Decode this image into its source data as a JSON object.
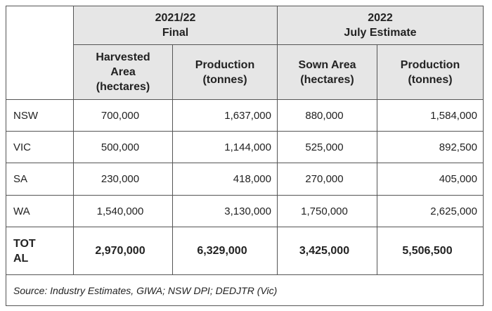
{
  "table": {
    "group_headers": [
      {
        "label": "2021/22\nFinal"
      },
      {
        "label": "2022\nJuly Estimate"
      }
    ],
    "column_headers": [
      {
        "label": "Harvested\nArea\n(hectares)"
      },
      {
        "label": "Production\n(tonnes)"
      },
      {
        "label": "Sown Area\n(hectares)"
      },
      {
        "label": "Production\n(tonnes)"
      }
    ],
    "rows": [
      {
        "region": "NSW",
        "values": [
          "700,000",
          "1,637,000",
          "880,000",
          "1,584,000"
        ]
      },
      {
        "region": "VIC",
        "values": [
          "500,000",
          "1,144,000",
          "525,000",
          "892,500"
        ]
      },
      {
        "region": "SA",
        "values": [
          "230,000",
          "418,000",
          "270,000",
          "405,000"
        ]
      },
      {
        "region": "WA",
        "values": [
          "1,540,000",
          "3,130,000",
          "1,750,000",
          "2,625,000"
        ]
      }
    ],
    "total": {
      "region": "TOT\nAL",
      "values": [
        "2,970,000",
        "6,329,000",
        "3,425,000",
        "5,506,500"
      ]
    },
    "source": "Source:  Industry Estimates, GIWA; NSW DPI; DEDJTR (Vic)"
  }
}
